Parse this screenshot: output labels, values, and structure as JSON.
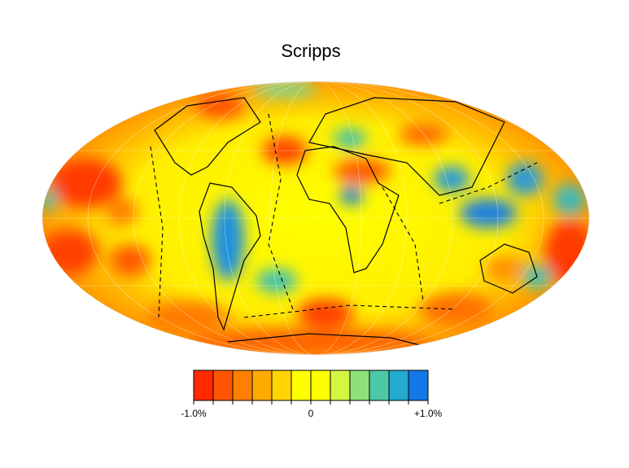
{
  "title": "Scripps",
  "colorbar": {
    "lim": [
      -1,
      1
    ],
    "ticks": [
      {
        "value": -1,
        "label": "-1.0%"
      },
      0,
      {
        "value": 1,
        "label": "+1.0%"
      }
    ],
    "colors": [
      "#ff2a00",
      "#ff5500",
      "#ff7f00",
      "#ffaa00",
      "#ffd400",
      "#ffff00",
      "#ffff00",
      "#d4f542",
      "#8fe07a",
      "#4cc8a8",
      "#22aad0",
      "#1478e6"
    ]
  }
}
